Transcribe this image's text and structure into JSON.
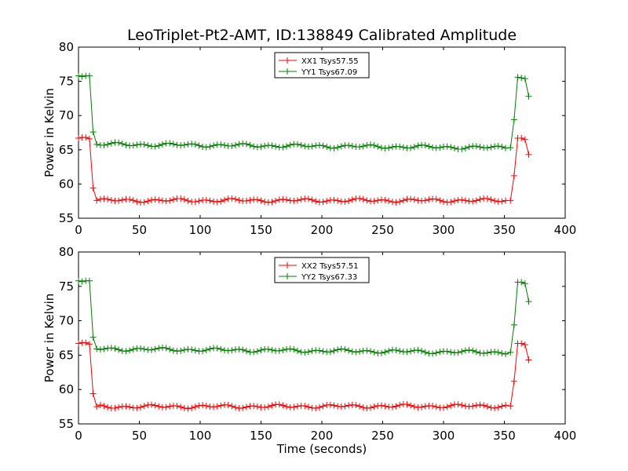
{
  "figure": {
    "title": "LeoTriplet-Pt2-AMT, ID:138849 Calibrated Amplitude"
  },
  "chart_data": [
    {
      "type": "line",
      "title": "LeoTriplet-Pt2-AMT, ID:138849 Calibrated Amplitude",
      "xlabel": "",
      "ylabel": "Power in Kelvin",
      "xlim": [
        0,
        400
      ],
      "ylim": [
        55,
        80
      ],
      "xticks": [
        "0",
        "50",
        "100",
        "150",
        "200",
        "250",
        "300",
        "350",
        "400"
      ],
      "yticks": [
        "55",
        "60",
        "65",
        "70",
        "75",
        "80"
      ],
      "legend_position": "top-center",
      "grid": false,
      "series": [
        {
          "name": "XX1 Tsys57.55",
          "color": "#ff0000",
          "marker": "+",
          "x": [
            0,
            3,
            6,
            9,
            12,
            15,
            355,
            358,
            361,
            364,
            367,
            370
          ],
          "y": [
            66.7,
            66.8,
            66.8,
            66.6,
            59.4,
            57.6,
            57.6,
            61.2,
            66.7,
            66.7,
            66.5,
            64.3
          ]
        },
        {
          "name": "YY1 Tsys67.09",
          "color": "#008000",
          "marker": "+",
          "x": [
            0,
            3,
            6,
            9,
            12,
            15,
            355,
            358,
            361,
            364,
            367,
            370
          ],
          "y": [
            75.8,
            75.7,
            75.8,
            75.8,
            67.6,
            65.8,
            65.3,
            69.4,
            75.6,
            75.5,
            75.4,
            72.8
          ]
        }
      ]
    },
    {
      "type": "line",
      "xlabel": "Time (seconds)",
      "ylabel": "Power in Kelvin",
      "xlim": [
        0,
        400
      ],
      "ylim": [
        55,
        80
      ],
      "xticks": [
        "0",
        "50",
        "100",
        "150",
        "200",
        "250",
        "300",
        "350",
        "400"
      ],
      "yticks": [
        "55",
        "60",
        "65",
        "70",
        "75",
        "80"
      ],
      "legend_position": "top-center",
      "grid": false,
      "series": [
        {
          "name": "XX2 Tsys57.51",
          "color": "#ff0000",
          "marker": "+",
          "x": [
            0,
            3,
            6,
            9,
            12,
            15,
            355,
            358,
            361,
            364,
            367,
            370
          ],
          "y": [
            66.7,
            66.8,
            66.8,
            66.6,
            59.4,
            57.5,
            57.6,
            61.2,
            66.7,
            66.7,
            66.5,
            64.3
          ]
        },
        {
          "name": "YY2 Tsys67.33",
          "color": "#008000",
          "marker": "+",
          "x": [
            0,
            3,
            6,
            9,
            12,
            15,
            355,
            358,
            361,
            364,
            367,
            370
          ],
          "y": [
            75.8,
            75.7,
            75.8,
            75.8,
            67.6,
            65.9,
            65.4,
            69.4,
            75.6,
            75.6,
            75.4,
            72.8
          ]
        }
      ]
    }
  ]
}
